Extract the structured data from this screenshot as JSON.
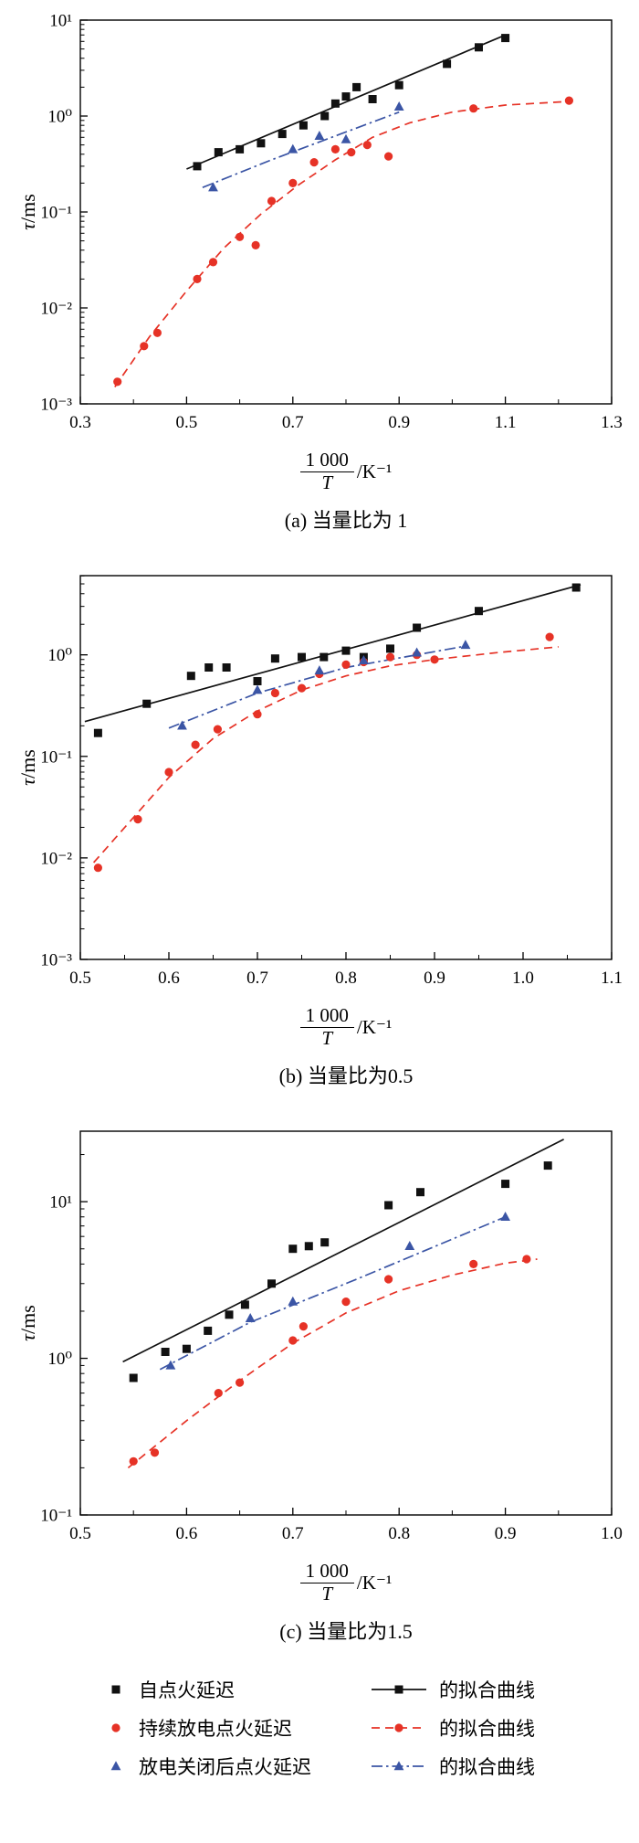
{
  "figure": {
    "ylabel_symbol": "τ",
    "ylabel_unit": "/ms",
    "xlabel": {
      "numerator": "1 000",
      "denominator": "T",
      "unit": "/K⁻¹"
    }
  },
  "colors": {
    "black": "#111111",
    "red": "#e63226",
    "blue": "#3b55a5"
  },
  "chart_data": [
    {
      "type": "scatter",
      "caption": "(a) 当量比为 1",
      "xlabel": "1 000/T /K⁻¹",
      "ylabel": "τ/ms",
      "xlim": [
        0.3,
        1.3
      ],
      "xticks": [
        {
          "v": 0.3,
          "label": "0.3"
        },
        {
          "v": 0.5,
          "label": "0.5"
        },
        {
          "v": 0.7,
          "label": "0.7"
        },
        {
          "v": 0.9,
          "label": "0.9"
        },
        {
          "v": 1.1,
          "label": "1.1"
        },
        {
          "v": 1.3,
          "label": "1.3"
        }
      ],
      "ylim_exp": [
        -3,
        1
      ],
      "yticks": [
        {
          "exp": -3,
          "label": "10⁻³"
        },
        {
          "exp": -2,
          "label": "10⁻²"
        },
        {
          "exp": -1,
          "label": "10⁻¹"
        },
        {
          "exp": 0,
          "label": "10⁰"
        },
        {
          "exp": 1,
          "label": "10¹"
        }
      ],
      "series": [
        {
          "name": "自点火延迟",
          "marker": "square",
          "color": "#111111",
          "points": [
            [
              0.52,
              0.3
            ],
            [
              0.56,
              0.42
            ],
            [
              0.6,
              0.45
            ],
            [
              0.64,
              0.52
            ],
            [
              0.68,
              0.65
            ],
            [
              0.72,
              0.8
            ],
            [
              0.76,
              1.0
            ],
            [
              0.78,
              1.35
            ],
            [
              0.8,
              1.6
            ],
            [
              0.82,
              2.0
            ],
            [
              0.85,
              1.5
            ],
            [
              0.9,
              2.1
            ],
            [
              0.99,
              3.5
            ],
            [
              1.05,
              5.2
            ],
            [
              1.1,
              6.5
            ]
          ]
        },
        {
          "name": "持续放电点火延迟",
          "marker": "circle",
          "color": "#e63226",
          "points": [
            [
              0.37,
              0.0017
            ],
            [
              0.42,
              0.004
            ],
            [
              0.445,
              0.0055
            ],
            [
              0.52,
              0.02
            ],
            [
              0.55,
              0.03
            ],
            [
              0.6,
              0.055
            ],
            [
              0.63,
              0.045
            ],
            [
              0.66,
              0.13
            ],
            [
              0.7,
              0.2
            ],
            [
              0.74,
              0.33
            ],
            [
              0.78,
              0.45
            ],
            [
              0.81,
              0.42
            ],
            [
              0.84,
              0.5
            ],
            [
              0.88,
              0.38
            ],
            [
              1.04,
              1.2
            ],
            [
              1.22,
              1.45
            ]
          ]
        },
        {
          "name": "放电关闭后点火延迟",
          "marker": "triangle",
          "color": "#3b55a5",
          "points": [
            [
              0.55,
              0.18
            ],
            [
              0.7,
              0.45
            ],
            [
              0.75,
              0.62
            ],
            [
              0.8,
              0.57
            ],
            [
              0.9,
              1.25
            ]
          ]
        }
      ],
      "fits": [
        {
          "name": "自点火延迟拟合曲线",
          "style": "solid",
          "color": "#111111",
          "points": [
            [
              0.5,
              0.28
            ],
            [
              1.1,
              7.0
            ]
          ]
        },
        {
          "name": "持续放电点火延迟拟合曲线",
          "style": "dashed",
          "color": "#e63226",
          "points": [
            [
              0.365,
              0.0015
            ],
            [
              0.43,
              0.005
            ],
            [
              0.5,
              0.015
            ],
            [
              0.57,
              0.042
            ],
            [
              0.64,
              0.095
            ],
            [
              0.71,
              0.19
            ],
            [
              0.78,
              0.35
            ],
            [
              0.85,
              0.6
            ],
            [
              0.92,
              0.85
            ],
            [
              1.0,
              1.1
            ],
            [
              1.1,
              1.3
            ],
            [
              1.22,
              1.42
            ]
          ]
        },
        {
          "name": "放电关闭后点火延迟拟合曲线",
          "style": "dashdot",
          "color": "#3b55a5",
          "points": [
            [
              0.53,
              0.18
            ],
            [
              0.66,
              0.35
            ],
            [
              0.79,
              0.65
            ],
            [
              0.9,
              1.1
            ]
          ]
        }
      ]
    },
    {
      "type": "scatter",
      "caption": "(b) 当量比为0.5",
      "xlabel": "1 000/T /K⁻¹",
      "ylabel": "τ/ms",
      "xlim": [
        0.5,
        1.1
      ],
      "xticks": [
        {
          "v": 0.5,
          "label": "0.5"
        },
        {
          "v": 0.6,
          "label": "0.6"
        },
        {
          "v": 0.7,
          "label": "0.7"
        },
        {
          "v": 0.8,
          "label": "0.8"
        },
        {
          "v": 0.9,
          "label": "0.9"
        },
        {
          "v": 1.0,
          "label": "1.0"
        },
        {
          "v": 1.1,
          "label": "1.1"
        }
      ],
      "ylim_exp": [
        -3,
        0.78
      ],
      "yticks": [
        {
          "exp": -3,
          "label": "10⁻³"
        },
        {
          "exp": -2,
          "label": "10⁻²"
        },
        {
          "exp": -1,
          "label": "10⁻¹"
        },
        {
          "exp": 0,
          "label": "10⁰"
        }
      ],
      "series": [
        {
          "name": "自点火延迟",
          "marker": "square",
          "color": "#111111",
          "points": [
            [
              0.52,
              0.17
            ],
            [
              0.575,
              0.33
            ],
            [
              0.625,
              0.62
            ],
            [
              0.645,
              0.75
            ],
            [
              0.665,
              0.75
            ],
            [
              0.7,
              0.55
            ],
            [
              0.72,
              0.92
            ],
            [
              0.75,
              0.95
            ],
            [
              0.775,
              0.95
            ],
            [
              0.8,
              1.1
            ],
            [
              0.82,
              0.95
            ],
            [
              0.85,
              1.15
            ],
            [
              0.88,
              1.85
            ],
            [
              0.95,
              2.7
            ],
            [
              1.06,
              4.6
            ]
          ]
        },
        {
          "name": "持续放电点火延迟",
          "marker": "circle",
          "color": "#e63226",
          "points": [
            [
              0.52,
              0.008
            ],
            [
              0.565,
              0.024
            ],
            [
              0.6,
              0.07
            ],
            [
              0.63,
              0.13
            ],
            [
              0.655,
              0.185
            ],
            [
              0.7,
              0.26
            ],
            [
              0.72,
              0.42
            ],
            [
              0.75,
              0.47
            ],
            [
              0.77,
              0.65
            ],
            [
              0.8,
              0.8
            ],
            [
              0.82,
              0.85
            ],
            [
              0.85,
              0.95
            ],
            [
              0.88,
              1.0
            ],
            [
              0.9,
              0.9
            ],
            [
              1.03,
              1.5
            ]
          ]
        },
        {
          "name": "放电关闭后点火延迟",
          "marker": "triangle",
          "color": "#3b55a5",
          "points": [
            [
              0.615,
              0.2
            ],
            [
              0.7,
              0.45
            ],
            [
              0.77,
              0.7
            ],
            [
              0.82,
              0.88
            ],
            [
              0.88,
              1.05
            ],
            [
              0.935,
              1.25
            ]
          ]
        }
      ],
      "fits": [
        {
          "name": "自点火延迟拟合曲线",
          "style": "solid",
          "color": "#111111",
          "points": [
            [
              0.505,
              0.22
            ],
            [
              1.065,
              4.9
            ]
          ]
        },
        {
          "name": "持续放电点火延迟拟合曲线",
          "style": "dashed",
          "color": "#e63226",
          "points": [
            [
              0.515,
              0.009
            ],
            [
              0.56,
              0.025
            ],
            [
              0.6,
              0.062
            ],
            [
              0.65,
              0.15
            ],
            [
              0.7,
              0.28
            ],
            [
              0.75,
              0.45
            ],
            [
              0.8,
              0.62
            ],
            [
              0.85,
              0.78
            ],
            [
              0.9,
              0.9
            ],
            [
              0.97,
              1.05
            ],
            [
              1.04,
              1.2
            ]
          ]
        },
        {
          "name": "放电关闭后点火延迟拟合曲线",
          "style": "dashdot",
          "color": "#3b55a5",
          "points": [
            [
              0.6,
              0.19
            ],
            [
              0.7,
              0.42
            ],
            [
              0.8,
              0.75
            ],
            [
              0.935,
              1.22
            ]
          ]
        }
      ]
    },
    {
      "type": "scatter",
      "caption": "(c) 当量比为1.5",
      "xlabel": "1 000/T /K⁻¹",
      "ylabel": "τ/ms",
      "xlim": [
        0.5,
        1.0
      ],
      "xticks": [
        {
          "v": 0.5,
          "label": "0.5"
        },
        {
          "v": 0.6,
          "label": "0.6"
        },
        {
          "v": 0.7,
          "label": "0.7"
        },
        {
          "v": 0.8,
          "label": "0.8"
        },
        {
          "v": 0.9,
          "label": "0.9"
        },
        {
          "v": 1.0,
          "label": "1.0"
        }
      ],
      "ylim_exp": [
        -1,
        1.45
      ],
      "yticks": [
        {
          "exp": -1,
          "label": "10⁻¹"
        },
        {
          "exp": 0,
          "label": "10⁰"
        },
        {
          "exp": 1,
          "label": "10¹"
        }
      ],
      "series": [
        {
          "name": "自点火延迟",
          "marker": "square",
          "color": "#111111",
          "points": [
            [
              0.55,
              0.75
            ],
            [
              0.58,
              1.1
            ],
            [
              0.6,
              1.15
            ],
            [
              0.62,
              1.5
            ],
            [
              0.64,
              1.9
            ],
            [
              0.655,
              2.2
            ],
            [
              0.68,
              3.0
            ],
            [
              0.7,
              5.0
            ],
            [
              0.715,
              5.2
            ],
            [
              0.73,
              5.5
            ],
            [
              0.79,
              9.5
            ],
            [
              0.82,
              11.5
            ],
            [
              0.9,
              13.0
            ],
            [
              0.94,
              17.0
            ]
          ]
        },
        {
          "name": "持续放电点火延迟",
          "marker": "circle",
          "color": "#e63226",
          "points": [
            [
              0.55,
              0.22
            ],
            [
              0.57,
              0.25
            ],
            [
              0.63,
              0.6
            ],
            [
              0.65,
              0.7
            ],
            [
              0.7,
              1.3
            ],
            [
              0.71,
              1.6
            ],
            [
              0.75,
              2.3
            ],
            [
              0.79,
              3.2
            ],
            [
              0.87,
              4.0
            ],
            [
              0.92,
              4.3
            ]
          ]
        },
        {
          "name": "放电关闭后点火延迟",
          "marker": "triangle",
          "color": "#3b55a5",
          "points": [
            [
              0.585,
              0.9
            ],
            [
              0.66,
              1.8
            ],
            [
              0.7,
              2.3
            ],
            [
              0.81,
              5.2
            ],
            [
              0.9,
              8.0
            ]
          ]
        }
      ],
      "fits": [
        {
          "name": "自点火延迟拟合曲线",
          "style": "solid",
          "color": "#111111",
          "points": [
            [
              0.54,
              0.95
            ],
            [
              0.955,
              25.0
            ]
          ]
        },
        {
          "name": "持续放电点火延迟拟合曲线",
          "style": "dashed",
          "color": "#e63226",
          "points": [
            [
              0.545,
              0.2
            ],
            [
              0.6,
              0.4
            ],
            [
              0.65,
              0.72
            ],
            [
              0.7,
              1.25
            ],
            [
              0.75,
              1.95
            ],
            [
              0.8,
              2.7
            ],
            [
              0.85,
              3.4
            ],
            [
              0.9,
              4.05
            ],
            [
              0.93,
              4.3
            ]
          ]
        },
        {
          "name": "放电关闭后点火延迟拟合曲线",
          "style": "dashdot",
          "color": "#3b55a5",
          "points": [
            [
              0.575,
              0.85
            ],
            [
              0.66,
              1.7
            ],
            [
              0.76,
              3.2
            ],
            [
              0.9,
              8.0
            ]
          ]
        }
      ]
    }
  ],
  "legend": {
    "items": [
      {
        "marker": "square",
        "color": "#111111",
        "label": "自点火延迟"
      },
      {
        "marker": "circle",
        "color": "#e63226",
        "label": "持续放电点火延迟"
      },
      {
        "marker": "triangle",
        "color": "#3b55a5",
        "label": "放电关闭后点火延迟"
      },
      {
        "line": "solid",
        "marker": "square",
        "color": "#111111",
        "label": "的拟合曲线"
      },
      {
        "line": "dashed",
        "marker": "circle",
        "color": "#e63226",
        "label": "的拟合曲线"
      },
      {
        "line": "dashdot",
        "marker": "triangle",
        "color": "#3b55a5",
        "label": "的拟合曲线"
      }
    ]
  }
}
